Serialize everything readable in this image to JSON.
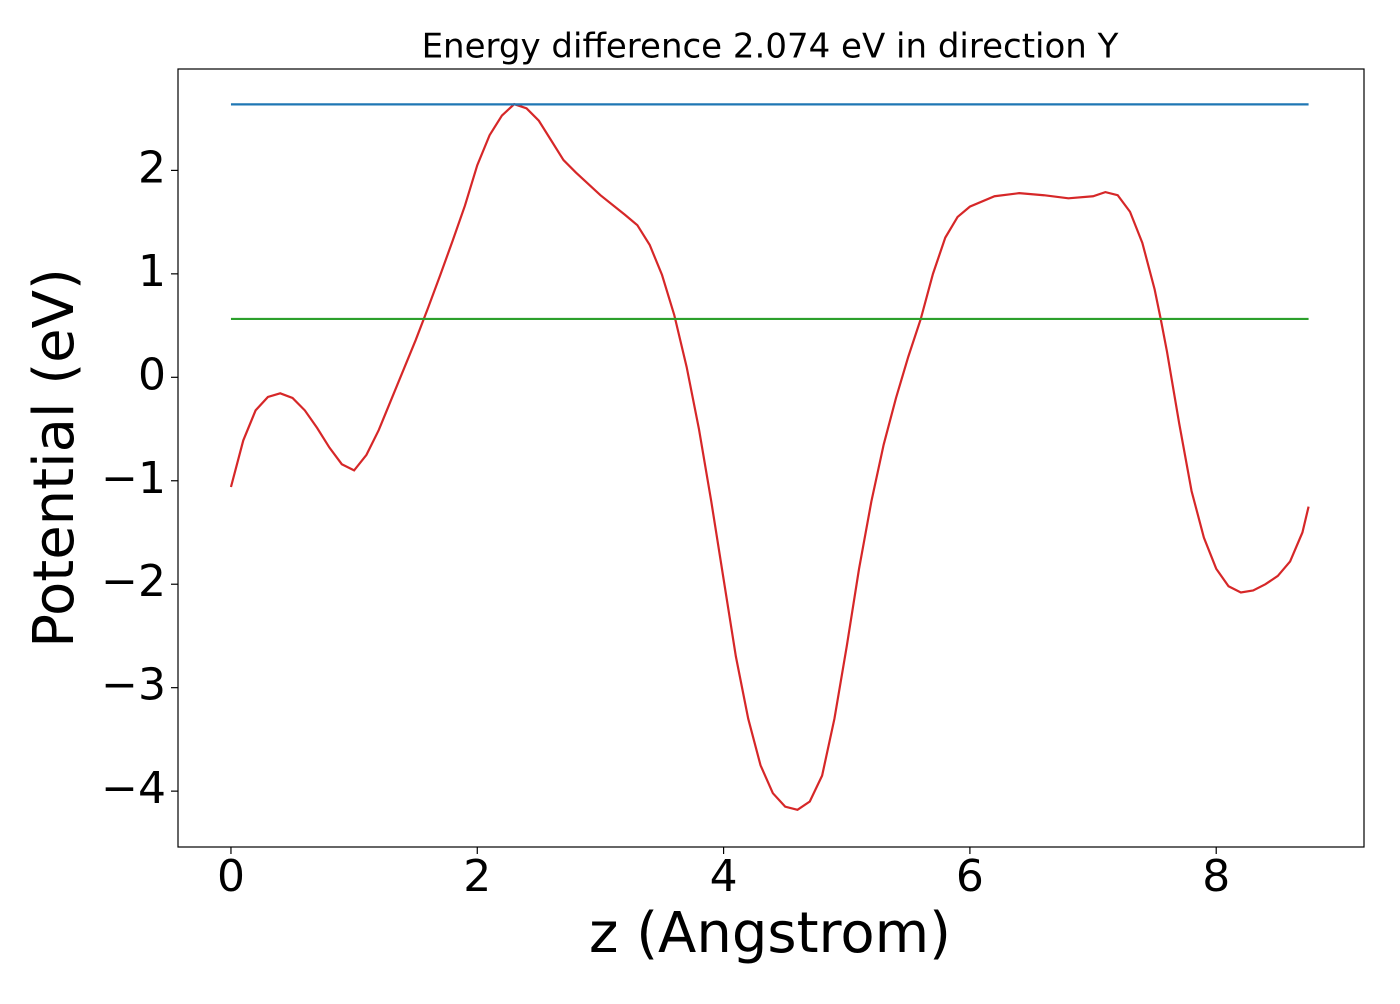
{
  "chart_data": {
    "type": "line",
    "title": "Energy difference 2.074 eV in direction Y",
    "xlabel": "z (Angstrom)",
    "ylabel": "Potential (eV)",
    "xlim": [
      -0.43,
      9.2
    ],
    "ylim": [
      -4.54,
      2.98
    ],
    "xticks": [
      0,
      2,
      4,
      6,
      8
    ],
    "yticks": [
      {
        "value": -4,
        "label": "−4"
      },
      {
        "value": -3,
        "label": "−3"
      },
      {
        "value": -2,
        "label": "−2"
      },
      {
        "value": -1,
        "label": "−1"
      },
      0,
      1,
      2
    ],
    "series": [
      {
        "color": "#d62728",
        "x": [
          0,
          0.1,
          0.2,
          0.3,
          0.4,
          0.5,
          0.6,
          0.7,
          0.8,
          0.9,
          1.0,
          1.1,
          1.2,
          1.3,
          1.4,
          1.5,
          1.6,
          1.7,
          1.8,
          1.9,
          2.0,
          2.1,
          2.2,
          2.3,
          2.4,
          2.5,
          2.6,
          2.7,
          2.8,
          3.0,
          3.2,
          3.3,
          3.4,
          3.5,
          3.6,
          3.7,
          3.8,
          3.9,
          4.0,
          4.1,
          4.2,
          4.3,
          4.4,
          4.5,
          4.6,
          4.7,
          4.8,
          4.9,
          5.0,
          5.1,
          5.2,
          5.3,
          5.4,
          5.5,
          5.6,
          5.7,
          5.8,
          5.9,
          6.0,
          6.2,
          6.4,
          6.6,
          6.8,
          7.0,
          7.1,
          7.2,
          7.3,
          7.4,
          7.5,
          7.55,
          7.6,
          7.7,
          7.8,
          7.9,
          8.0,
          8.1,
          8.2,
          8.3,
          8.4,
          8.5,
          8.6,
          8.7,
          8.75
        ],
        "values": [
          -1.06,
          -0.61,
          -0.32,
          -0.19,
          -0.155,
          -0.2,
          -0.32,
          -0.49,
          -0.68,
          -0.84,
          -0.9,
          -0.75,
          -0.51,
          -0.22,
          0.07,
          0.36,
          0.67,
          0.99,
          1.32,
          1.66,
          2.05,
          2.34,
          2.53,
          2.64,
          2.6,
          2.48,
          2.29,
          2.1,
          1.98,
          1.76,
          1.57,
          1.47,
          1.28,
          0.99,
          0.6,
          0.1,
          -0.5,
          -1.2,
          -1.95,
          -2.7,
          -3.3,
          -3.75,
          -4.02,
          -4.15,
          -4.18,
          -4.1,
          -3.85,
          -3.3,
          -2.6,
          -1.85,
          -1.2,
          -0.65,
          -0.2,
          0.2,
          0.56,
          1.0,
          1.35,
          1.55,
          1.65,
          1.75,
          1.78,
          1.76,
          1.73,
          1.75,
          1.79,
          1.76,
          1.6,
          1.3,
          0.85,
          0.56,
          0.25,
          -0.45,
          -1.1,
          -1.55,
          -1.85,
          -2.02,
          -2.08,
          -2.06,
          -2.0,
          -1.92,
          -1.78,
          -1.5,
          -1.25
        ]
      },
      {
        "color": "#1f77b4",
        "x": [
          0,
          8.75
        ],
        "values": [
          2.638,
          2.638
        ]
      },
      {
        "color": "#2ca02c",
        "x": [
          0,
          8.75
        ],
        "values": [
          0.564,
          0.564
        ]
      }
    ]
  }
}
